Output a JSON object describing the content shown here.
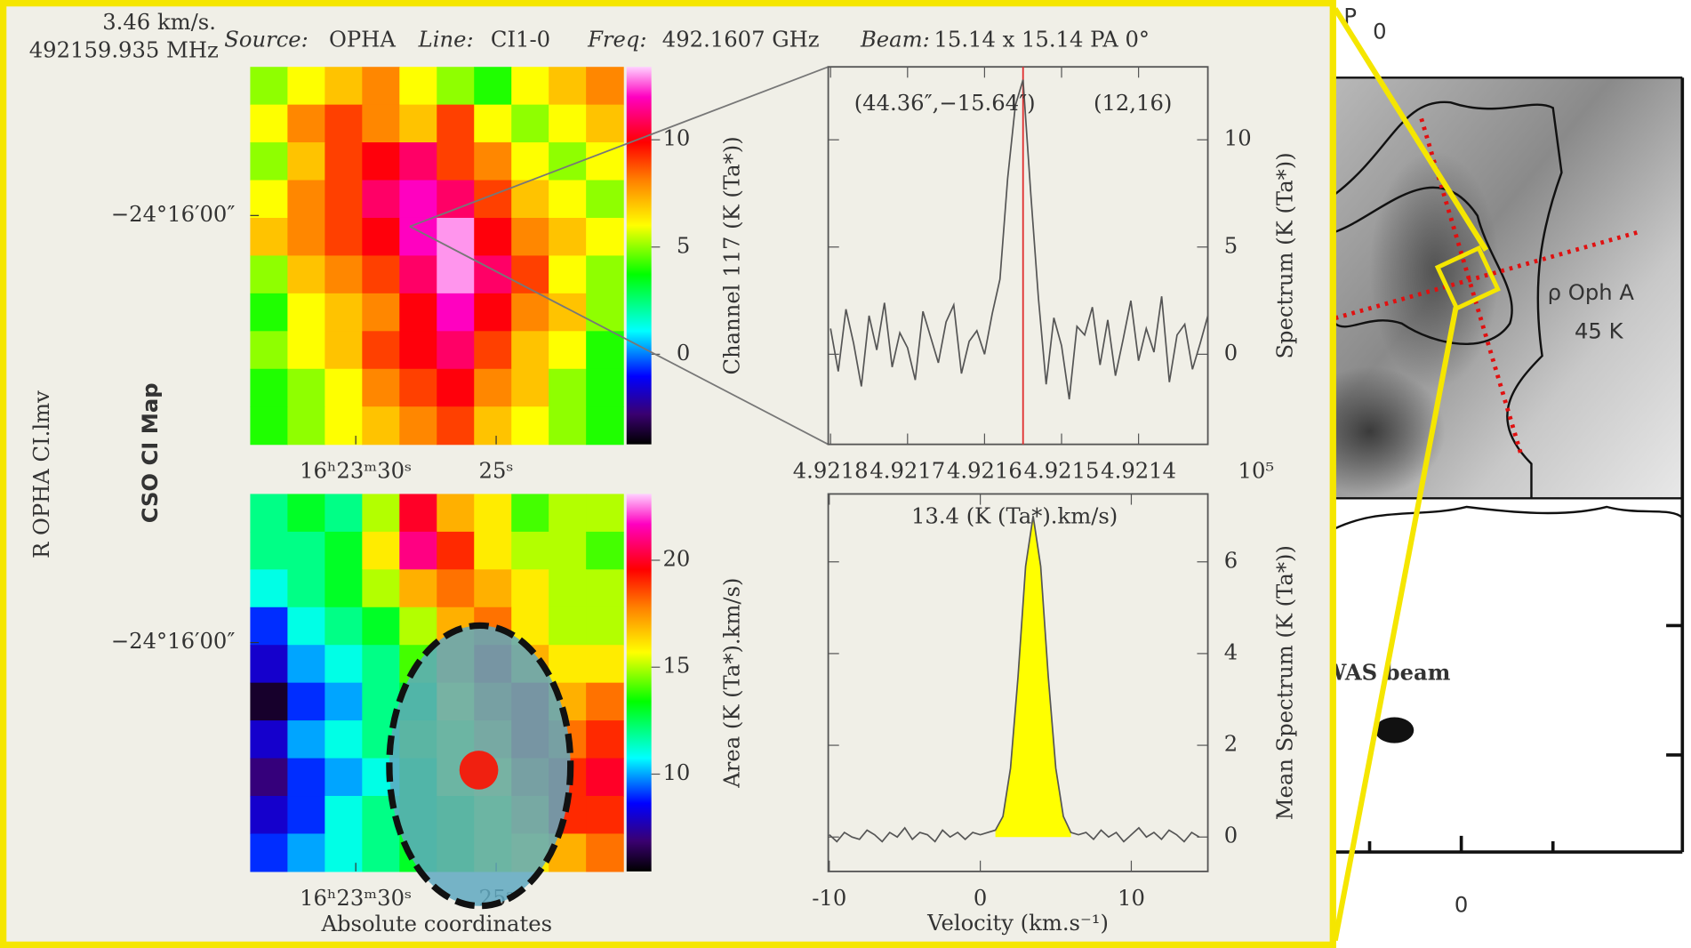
{
  "header": {
    "velocity": "3.46 km/s.",
    "frequency": "492159.935 MHz",
    "source_label": "Source:",
    "source": "OPHA",
    "line_label": "Line:",
    "line": "CI1-0",
    "freq_label": "Freq:",
    "freq": "492.1607 GHz",
    "beam_label": "Beam:",
    "beam": "15.14 x 15.14 PA 0°"
  },
  "side_labels": {
    "file": "R OPHA CI.lmv",
    "map_title": "CSO CI Map"
  },
  "top_map": {
    "colorbar_label": "Channel 117 (K (Ta*))",
    "clim": [
      -4.2,
      13.4
    ],
    "cticks": [
      0,
      5,
      10
    ],
    "xlim": [
      33.76,
      20.47
    ],
    "xticks": [
      {
        "value": 30,
        "label": "16ʰ23ᵐ30ˢ"
      },
      {
        "value": 25,
        "label": "25ˢ"
      }
    ],
    "ylim": [
      -87457,
      -87297
    ],
    "yticks": [
      {
        "value": -87360,
        "label": "−24°16′00″"
      }
    ],
    "values": [
      [
        5,
        6,
        7,
        8,
        6,
        5,
        4,
        6,
        7,
        8
      ],
      [
        6,
        8,
        9,
        8,
        7,
        9,
        6,
        5,
        6,
        7
      ],
      [
        5,
        7,
        9,
        10,
        11,
        9,
        8,
        6,
        5,
        6
      ],
      [
        6,
        8,
        9,
        11,
        12,
        11,
        9,
        7,
        6,
        5
      ],
      [
        7,
        8,
        9,
        10,
        12,
        13,
        10,
        8,
        7,
        6
      ],
      [
        5,
        7,
        8,
        9,
        11,
        13,
        11,
        9,
        6,
        5
      ],
      [
        4,
        6,
        7,
        8,
        10,
        12,
        10,
        8,
        7,
        5
      ],
      [
        5,
        6,
        7,
        9,
        10,
        11,
        9,
        7,
        6,
        4
      ],
      [
        4,
        5,
        6,
        8,
        9,
        10,
        8,
        7,
        5,
        4
      ],
      [
        4,
        5,
        6,
        7,
        8,
        9,
        7,
        6,
        5,
        4
      ]
    ]
  },
  "top_spectrum": {
    "type": "line",
    "ylabel": "Spectrum (K (Ta*))",
    "annotations": [
      "(44.36″,−15.64″)",
      "(12,16)"
    ],
    "x_multiplier": "10⁵",
    "color": "#555555",
    "cursor": 4.92155,
    "cursor_color": "#e03030",
    "xlim": [
      4.921803,
      4.92131
    ],
    "xticks": [
      4.9218,
      4.9217,
      4.9216,
      4.9215,
      4.9214
    ],
    "ylim": [
      -4.2,
      13.4
    ],
    "yticks": [
      0,
      5,
      10
    ],
    "x": [
      4.9218,
      4.92179,
      4.92178,
      4.92177,
      4.92176,
      4.92175,
      4.92174,
      4.92173,
      4.92172,
      4.92171,
      4.9217,
      4.92169,
      4.92168,
      4.92167,
      4.92166,
      4.92165,
      4.92164,
      4.92163,
      4.92162,
      4.92161,
      4.9216,
      4.92159,
      4.92158,
      4.92157,
      4.92156,
      4.92155,
      4.92154,
      4.92153,
      4.92152,
      4.92151,
      4.9215,
      4.92149,
      4.92148,
      4.92147,
      4.92146,
      4.92145,
      4.92144,
      4.92143,
      4.92142,
      4.92141,
      4.9214,
      4.92139,
      4.92138,
      4.92137,
      4.92136,
      4.92135,
      4.92134,
      4.92133,
      4.92132,
      4.92131
    ],
    "values": [
      1.2,
      -0.8,
      2.1,
      0.5,
      -1.5,
      1.8,
      0.2,
      2.4,
      -0.6,
      1.0,
      0.3,
      -1.2,
      2.0,
      0.8,
      -0.4,
      1.5,
      2.3,
      -0.9,
      0.6,
      1.1,
      0.0,
      1.9,
      3.5,
      8.2,
      11.6,
      12.8,
      7.5,
      2.6,
      -1.4,
      1.7,
      0.4,
      -2.1,
      1.3,
      0.9,
      2.2,
      -0.5,
      1.6,
      -1.0,
      0.7,
      2.5,
      -0.3,
      1.2,
      0.1,
      2.7,
      -1.3,
      0.9,
      1.4,
      -0.7,
      0.5,
      1.8
    ]
  },
  "bottom_map": {
    "colorbar_label": "Area (K (Ta*).km/s)",
    "xlabel": "Absolute coordinates",
    "clim": [
      5.45,
      23.1
    ],
    "cticks": [
      10,
      15,
      20
    ],
    "xlim": [
      33.76,
      20.47
    ],
    "xticks": [
      {
        "value": 30,
        "label": "16ʰ23ᵐ30ˢ"
      },
      {
        "value": 25,
        "label": "25ˢ"
      }
    ],
    "ylim": [
      -87457,
      -87297
    ],
    "yticks": [
      {
        "value": -87360,
        "label": "−24°16′00″"
      }
    ],
    "values": [
      [
        12,
        13,
        12,
        15,
        20,
        17,
        16,
        14,
        15,
        15
      ],
      [
        12,
        12,
        13,
        16,
        21,
        19,
        16,
        15,
        15,
        14
      ],
      [
        11,
        12,
        13,
        15,
        17,
        18,
        17,
        16,
        15,
        15
      ],
      [
        9,
        11,
        12,
        13,
        15,
        17,
        18,
        16,
        15,
        15
      ],
      [
        8,
        10,
        11,
        12,
        14,
        17,
        19,
        17,
        16,
        16
      ],
      [
        6,
        9,
        10,
        12,
        13,
        16,
        18,
        19,
        17,
        18
      ],
      [
        8,
        10,
        11,
        12,
        14,
        15,
        17,
        19,
        18,
        19
      ],
      [
        7,
        9,
        10,
        11,
        13,
        15,
        16,
        18,
        19,
        20
      ],
      [
        8,
        9,
        11,
        12,
        13,
        14,
        15,
        17,
        19,
        19
      ],
      [
        9,
        10,
        11,
        12,
        13,
        14,
        15,
        16,
        17,
        18
      ]
    ]
  },
  "bottom_spectrum": {
    "type": "line",
    "annotation": "13.4 (K (Ta*).km/s)",
    "xlabel": "Velocity (km.s⁻¹)",
    "ylabel": "Mean Spectrum (K (Ta*))",
    "color": "#555555",
    "fill_color": "#ffff00",
    "fill_range": [
      1,
      6
    ],
    "xlim": [
      -10.07,
      15.07
    ],
    "xticks": [
      -10,
      0,
      10
    ],
    "ylim": [
      -0.75,
      7.48
    ],
    "yticks": [
      0,
      2,
      4,
      6
    ],
    "x": [
      -10,
      -9.5,
      -9,
      -8.5,
      -8,
      -7.5,
      -7,
      -6.5,
      -6,
      -5.5,
      -5,
      -4.5,
      -4,
      -3.5,
      -3,
      -2.5,
      -2,
      -1.5,
      -1,
      -0.5,
      0,
      0.5,
      1,
      1.5,
      2,
      2.5,
      3,
      3.5,
      4,
      4.5,
      5,
      5.5,
      6,
      6.5,
      7,
      7.5,
      8,
      8.5,
      9,
      9.5,
      10,
      10.5,
      11,
      11.5,
      12,
      12.5,
      13,
      13.5,
      14,
      14.5
    ],
    "values": [
      0.05,
      -0.1,
      0.1,
      0.0,
      -0.05,
      0.15,
      0.05,
      -0.1,
      0.1,
      0.0,
      0.2,
      -0.05,
      0.1,
      0.05,
      -0.1,
      0.15,
      0.0,
      0.1,
      -0.05,
      0.1,
      0.05,
      0.1,
      0.15,
      0.45,
      1.5,
      3.5,
      5.9,
      7.0,
      5.9,
      3.5,
      1.5,
      0.45,
      0.1,
      0.05,
      0.1,
      -0.05,
      0.15,
      0.0,
      0.1,
      -0.1,
      0.05,
      0.2,
      0.0,
      0.1,
      -0.05,
      0.15,
      0.05,
      -0.1,
      0.1,
      0.0
    ]
  },
  "right_panel": {
    "title": "P",
    "title_sub": "0",
    "source": "ρ Oph A",
    "temperature": "45 K",
    "beam": "WAS beam",
    "xtick": "0"
  }
}
